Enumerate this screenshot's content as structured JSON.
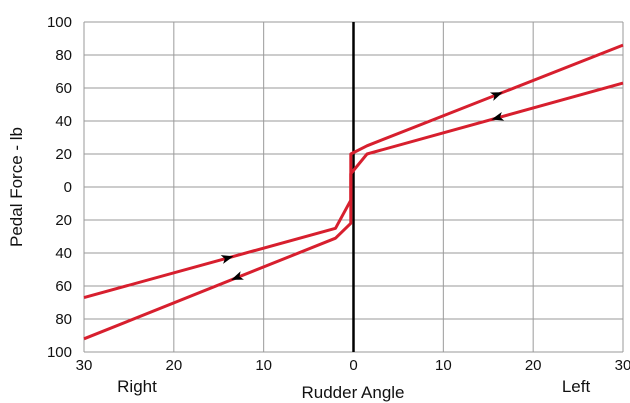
{
  "chart_data": {
    "type": "line",
    "title": "",
    "xlabel": "Rudder Angle",
    "ylabel": "Pedal Force - lb",
    "x_side_labels": {
      "left": "Right",
      "right": "Left"
    },
    "xlim": [
      -30,
      30
    ],
    "ylim": [
      -100,
      100
    ],
    "x_tick_values": [
      -30,
      -20,
      -10,
      0,
      10,
      20,
      30
    ],
    "x_tick_labels": [
      "30",
      "20",
      "10",
      "0",
      "10",
      "20",
      "30"
    ],
    "y_tick_values": [
      100,
      80,
      60,
      40,
      20,
      0,
      -20,
      -40,
      -60,
      -80,
      -100
    ],
    "y_tick_labels": [
      "100",
      "80",
      "60",
      "40",
      "20",
      "0",
      "20",
      "40",
      "60",
      "80",
      "100"
    ],
    "grid": true,
    "legend": "none",
    "series": [
      {
        "color": "#d71f2e",
        "points": [
          [
            -30,
            -92
          ],
          [
            -2,
            -31
          ],
          [
            -0.3,
            -22
          ],
          [
            -0.3,
            8
          ],
          [
            1.5,
            20
          ],
          [
            30,
            63
          ]
        ]
      },
      {
        "color": "#d71f2e",
        "points": [
          [
            -30,
            -67
          ],
          [
            -2,
            -25
          ],
          [
            -0.3,
            -8
          ],
          [
            -0.3,
            20
          ],
          [
            1.5,
            25
          ],
          [
            30,
            86
          ]
        ]
      }
    ],
    "arrows": [
      {
        "series": 0,
        "x": 16,
        "direction": "left"
      },
      {
        "series": 1,
        "x": 16,
        "direction": "right"
      },
      {
        "series": 1,
        "x": -14,
        "direction": "right"
      },
      {
        "series": 0,
        "x": -13,
        "direction": "left"
      }
    ],
    "zero_line_color": "#000000",
    "grid_color": "#9a9a9a"
  }
}
